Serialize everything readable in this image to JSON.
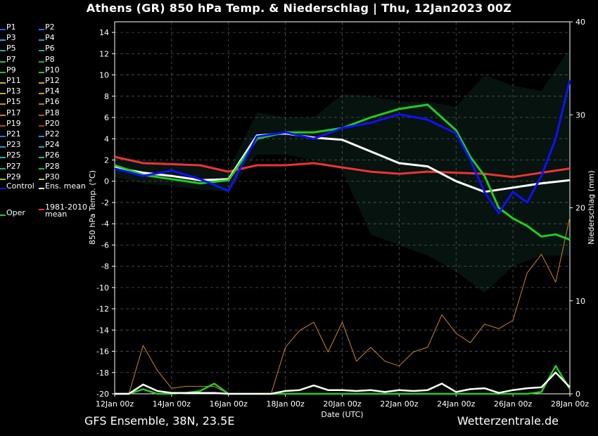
{
  "title": "Athens  (GR)  850 hPa Temp. & Niederschlag | Thu, 12Jan2023 00Z",
  "footer": {
    "left": "GFS Ensemble, 38N, 23.5E",
    "right": "Wetterzentrale.de"
  },
  "colors": {
    "background": "#000000",
    "control": "#1010ff",
    "oper": "#22cc22",
    "ens_mean": "#ffffff",
    "clim_mean": "#ee3333"
  },
  "legend": {
    "members": [
      {
        "label": "P1",
        "color": "#2a5cff"
      },
      {
        "label": "P2",
        "color": "#3a6cff"
      },
      {
        "label": "P3",
        "color": "#2aa0d8"
      },
      {
        "label": "P4",
        "color": "#1e9ec8"
      },
      {
        "label": "P5",
        "color": "#22aaaa"
      },
      {
        "label": "P6",
        "color": "#22b090"
      },
      {
        "label": "P7",
        "color": "#22b888"
      },
      {
        "label": "P8",
        "color": "#22aa66"
      },
      {
        "label": "P9",
        "color": "#22bb44"
      },
      {
        "label": "P10",
        "color": "#22cc22"
      },
      {
        "label": "P11",
        "color": "#bbbb22"
      },
      {
        "label": "P12",
        "color": "#ccaa22"
      },
      {
        "label": "P13",
        "color": "#ccaa44"
      },
      {
        "label": "P14",
        "color": "#cc9933"
      },
      {
        "label": "P15",
        "color": "#cc8844"
      },
      {
        "label": "P16",
        "color": "#bb7733"
      },
      {
        "label": "P17",
        "color": "#cc7744"
      },
      {
        "label": "P18",
        "color": "#bb5533"
      },
      {
        "label": "P19",
        "color": "#bb4433"
      },
      {
        "label": "P20",
        "color": "#aa3333"
      },
      {
        "label": "P21",
        "color": "#2a70ff"
      },
      {
        "label": "P22",
        "color": "#2a8cdd"
      },
      {
        "label": "P23",
        "color": "#22a0cc"
      },
      {
        "label": "P24",
        "color": "#22aabb"
      },
      {
        "label": "P25",
        "color": "#22b899"
      },
      {
        "label": "P26",
        "color": "#22bb88"
      },
      {
        "label": "P27",
        "color": "#22bb66"
      },
      {
        "label": "P28",
        "color": "#22bb44"
      },
      {
        "label": "P29",
        "color": "#88cc22"
      },
      {
        "label": "P30",
        "color": "#cccc22"
      }
    ],
    "control": "Control",
    "ens_mean": "Ens. mean",
    "clim_mean": "1981-2010\nmean",
    "oper": "Oper"
  },
  "chart_data": {
    "type": "line",
    "xlabel": "Date (UTC)",
    "ylabel": "850 hPa Temp. (°C)",
    "y2label": "Niederschlag (mm)",
    "ylim": [
      -20,
      15
    ],
    "y2lim": [
      0,
      40
    ],
    "xlim": [
      0,
      16
    ],
    "x_tick_labels": [
      "12Jan 00z",
      "14Jan 00z",
      "16Jan 00z",
      "18Jan 00z",
      "20Jan 00z",
      "22Jan 00z",
      "24Jan 00z",
      "26Jan 00z",
      "28Jan 00z"
    ],
    "y_ticks": [
      14,
      12,
      10,
      8,
      6,
      4,
      2,
      0,
      -2,
      -4,
      -6,
      -8,
      -10,
      -12,
      -14,
      -16,
      -18,
      -20
    ],
    "y2_ticks": [
      40,
      30,
      20,
      10,
      0
    ],
    "grid": true,
    "x_unit": "days since 12Jan 00z",
    "series": [
      {
        "name": "Control",
        "role": "control",
        "x": [
          0,
          1,
          2,
          3,
          4,
          5,
          6,
          7,
          8,
          9,
          10,
          11,
          12,
          12.5,
          13,
          13.5,
          14,
          14.5,
          15,
          15.5,
          16
        ],
        "y": [
          1.2,
          0.5,
          1.0,
          0.2,
          -0.9,
          4.2,
          4.6,
          4.0,
          5.0,
          5.5,
          6.3,
          5.8,
          4.5,
          2.0,
          -1.0,
          -3.0,
          -1.0,
          -2.0,
          0.5,
          4.0,
          9.5
        ]
      },
      {
        "name": "Oper",
        "role": "oper",
        "x": [
          0,
          1,
          2,
          3,
          4,
          5,
          6,
          7,
          8,
          9,
          10,
          11,
          12,
          12.5,
          13,
          13.5,
          14,
          14.5,
          15,
          15.5,
          16
        ],
        "y": [
          1.5,
          0.6,
          0.2,
          -0.2,
          0.1,
          4.0,
          4.6,
          4.6,
          5.0,
          6.0,
          6.8,
          7.2,
          4.8,
          2.3,
          0.5,
          -2.5,
          -3.5,
          -4.2,
          -5.2,
          -5.0,
          -5.5
        ]
      },
      {
        "name": "Ens. mean",
        "role": "mean",
        "x": [
          0,
          1,
          2,
          3,
          4,
          5,
          6,
          7,
          8,
          9,
          10,
          11,
          12,
          13,
          14,
          15,
          16
        ],
        "y": [
          1.3,
          0.8,
          0.5,
          0.1,
          0.2,
          4.3,
          4.5,
          4.1,
          3.9,
          2.8,
          1.7,
          1.4,
          0.0,
          -1.0,
          -0.6,
          -0.2,
          0.1
        ]
      },
      {
        "name": "1981-2010 mean",
        "role": "clim",
        "x": [
          0,
          1,
          2,
          3,
          4,
          5,
          6,
          7,
          8,
          9,
          10,
          11,
          12,
          13,
          14,
          15,
          16
        ],
        "y": [
          2.3,
          1.7,
          1.6,
          1.5,
          0.9,
          1.5,
          1.5,
          1.7,
          1.3,
          0.9,
          0.7,
          0.9,
          0.8,
          0.7,
          0.4,
          0.8,
          1.2
        ]
      }
    ],
    "member_spread": {
      "x": [
        0,
        1,
        2,
        3,
        4,
        5,
        6,
        7,
        8,
        9,
        10,
        11,
        12,
        13,
        14,
        15,
        16
      ],
      "max": [
        2.2,
        2.0,
        1.8,
        1.5,
        1.0,
        6.5,
        6.0,
        6.0,
        8.2,
        8.0,
        7.5,
        7.5,
        7.0,
        10.0,
        9.0,
        8.5,
        12.5
      ],
      "min": [
        0.4,
        -0.2,
        -0.4,
        -0.8,
        -1.0,
        2.5,
        2.5,
        2.0,
        1.0,
        -5.0,
        -6.0,
        -7.0,
        -8.5,
        -10.5,
        -8.0,
        -7.0,
        -7.0
      ]
    },
    "precipitation": {
      "unit": "mm",
      "x": [
        0,
        0.5,
        1,
        1.5,
        2,
        2.5,
        3,
        3.5,
        4,
        4.5,
        5,
        5.5,
        6,
        6.5,
        7,
        7.5,
        8,
        8.5,
        9,
        9.5,
        10,
        10.5,
        11,
        11.5,
        12,
        12.5,
        13,
        13.5,
        14,
        14.5,
        15,
        15.5,
        16
      ],
      "mean": [
        0,
        0,
        1.0,
        0.3,
        0.1,
        0.1,
        0.1,
        0.1,
        0,
        0,
        0,
        0,
        0.3,
        0.4,
        0.9,
        0.4,
        0.4,
        0.3,
        0.4,
        0.2,
        0.4,
        0.3,
        0.4,
        1.1,
        0.2,
        0.5,
        0.6,
        0.1,
        0.4,
        0.6,
        0.7,
        2.3,
        0.7
      ],
      "oper": [
        0,
        0,
        0.5,
        0,
        0,
        0.1,
        0.3,
        1.1,
        0,
        0,
        0,
        0,
        0,
        0,
        0,
        0,
        0,
        0,
        0,
        0,
        0,
        0,
        0,
        0,
        0,
        0,
        0,
        0,
        0,
        0,
        0.2,
        3.0,
        0.5
      ],
      "max": [
        0,
        0,
        5.2,
        2.5,
        0.6,
        0.8,
        0.8,
        0.8,
        0,
        0,
        0,
        0,
        5.0,
        6.8,
        7.7,
        4.5,
        7.7,
        3.5,
        5.0,
        3.5,
        3.0,
        4.5,
        5.0,
        8.5,
        6.5,
        5.5,
        7.5,
        7.0,
        7.9,
        13.0,
        15.0,
        12.0,
        19.0
      ]
    }
  }
}
